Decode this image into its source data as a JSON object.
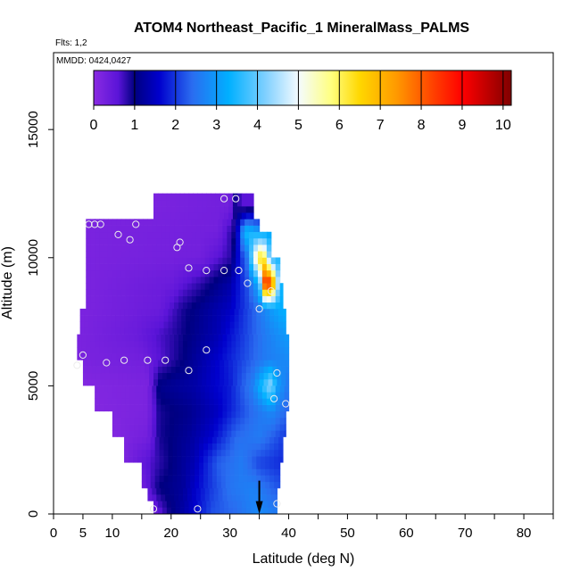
{
  "flts": "Flts: 1,2",
  "mmdd": "MMDD: 0424,0427",
  "chart_data": {
    "type": "heatmap",
    "title": "ATOM4 Northeast_Pacific_1 MineralMass_PALMS",
    "xlabel": "Latitude (deg N)",
    "ylabel": "Altitude (m)",
    "xlim": [
      0,
      85
    ],
    "ylim": [
      0,
      18000
    ],
    "x_ticks": [
      0,
      5,
      10,
      20,
      30,
      40,
      50,
      60,
      70,
      80
    ],
    "y_ticks": [
      0,
      5000,
      10000,
      15000
    ],
    "colorbar": {
      "range": [
        0,
        10.2
      ],
      "ticks": [
        0,
        1,
        2,
        3,
        4,
        5,
        6,
        7,
        8,
        9,
        10
      ],
      "stops": [
        {
          "v": 0,
          "color": "#8a2be2"
        },
        {
          "v": 0.6,
          "color": "#5a14d8"
        },
        {
          "v": 1.0,
          "color": "#000080"
        },
        {
          "v": 1.6,
          "color": "#0000cd"
        },
        {
          "v": 2.4,
          "color": "#2a6cf0"
        },
        {
          "v": 3.3,
          "color": "#00b0ff"
        },
        {
          "v": 4.2,
          "color": "#80d0ff"
        },
        {
          "v": 5.0,
          "color": "#f4fbff"
        },
        {
          "v": 5.8,
          "color": "#ffff80"
        },
        {
          "v": 6.5,
          "color": "#ffd700"
        },
        {
          "v": 7.4,
          "color": "#ff9900"
        },
        {
          "v": 8.3,
          "color": "#ff4000"
        },
        {
          "v": 9.0,
          "color": "#ff0000"
        },
        {
          "v": 9.6,
          "color": "#c00000"
        },
        {
          "v": 10.2,
          "color": "#800000"
        }
      ]
    },
    "envelope": [
      {
        "alt": 0,
        "lat_min": 17,
        "lat_max": 38
      },
      {
        "alt": 500,
        "lat_min": 16,
        "lat_max": 38
      },
      {
        "alt": 1000,
        "lat_min": 15,
        "lat_max": 38.5
      },
      {
        "alt": 2000,
        "lat_min": 12,
        "lat_max": 39
      },
      {
        "alt": 3000,
        "lat_min": 10,
        "lat_max": 39.5
      },
      {
        "alt": 4000,
        "lat_min": 7,
        "lat_max": 40
      },
      {
        "alt": 5000,
        "lat_min": 5,
        "lat_max": 40
      },
      {
        "alt": 6000,
        "lat_min": 4,
        "lat_max": 40
      },
      {
        "alt": 7000,
        "lat_min": 4.5,
        "lat_max": 39.5
      },
      {
        "alt": 8000,
        "lat_min": 5.5,
        "lat_max": 39
      },
      {
        "alt": 9000,
        "lat_min": 5.5,
        "lat_max": 38.5
      },
      {
        "alt": 10000,
        "lat_min": 5.5,
        "lat_max": 37
      },
      {
        "alt": 11000,
        "lat_min": 5.5,
        "lat_max": 35
      },
      {
        "alt": 11500,
        "lat_min": 17,
        "lat_max": 34
      },
      {
        "alt": 12500,
        "lat_min": 28,
        "lat_max": 32
      }
    ],
    "profile": [
      {
        "alt": 0,
        "values": [
          [
            17,
            0.3
          ],
          [
            20,
            1.0
          ],
          [
            24,
            1.6
          ],
          [
            27,
            2.2
          ],
          [
            31,
            2.4
          ],
          [
            35,
            2.8
          ],
          [
            38,
            2.6
          ]
        ]
      },
      {
        "alt": 1000,
        "values": [
          [
            15,
            0.3
          ],
          [
            18,
            1.0
          ],
          [
            22,
            1.2
          ],
          [
            26,
            1.9
          ],
          [
            30,
            2.5
          ],
          [
            34,
            2.7
          ],
          [
            38.5,
            2.2
          ]
        ]
      },
      {
        "alt": 2000,
        "values": [
          [
            12,
            0.2
          ],
          [
            16,
            0.6
          ],
          [
            20,
            1.0
          ],
          [
            24,
            1.4
          ],
          [
            28,
            2.3
          ],
          [
            32,
            2.6
          ],
          [
            35,
            2.1
          ],
          [
            39,
            1.9
          ]
        ]
      },
      {
        "alt": 3000,
        "values": [
          [
            10,
            0.1
          ],
          [
            16,
            0.3
          ],
          [
            18,
            0.9
          ],
          [
            23,
            1.2
          ],
          [
            27,
            1.6
          ],
          [
            31,
            2.4
          ],
          [
            35,
            2.6
          ],
          [
            39.5,
            2.0
          ]
        ]
      },
      {
        "alt": 4000,
        "values": [
          [
            7,
            0.1
          ],
          [
            16,
            0.2
          ],
          [
            18,
            0.9
          ],
          [
            23,
            1.1
          ],
          [
            28,
            1.5
          ],
          [
            33,
            2.3
          ],
          [
            37,
            2.8
          ],
          [
            40,
            2.3
          ]
        ]
      },
      {
        "alt": 5000,
        "values": [
          [
            5,
            0.1
          ],
          [
            16,
            0.2
          ],
          [
            18,
            1.1
          ],
          [
            24,
            1.3
          ],
          [
            30,
            1.8
          ],
          [
            34,
            2.7
          ],
          [
            37,
            4.4
          ],
          [
            38,
            3.1
          ],
          [
            40,
            2.5
          ]
        ]
      },
      {
        "alt": 6000,
        "values": [
          [
            4,
            0.2
          ],
          [
            15,
            0.3
          ],
          [
            21,
            0.9
          ],
          [
            24,
            1.2
          ],
          [
            28,
            1.6
          ],
          [
            32,
            2.1
          ],
          [
            36,
            2.6
          ],
          [
            40,
            2.8
          ]
        ]
      },
      {
        "alt": 7000,
        "values": [
          [
            4.5,
            0.2
          ],
          [
            14,
            0.4
          ],
          [
            20,
            0.8
          ],
          [
            24,
            1.1
          ],
          [
            28,
            1.4
          ],
          [
            32,
            2.0
          ],
          [
            36,
            2.6
          ],
          [
            39.5,
            3.0
          ]
        ]
      },
      {
        "alt": 8000,
        "values": [
          [
            5.5,
            0.2
          ],
          [
            18,
            0.4
          ],
          [
            22,
            0.9
          ],
          [
            26,
            1.2
          ],
          [
            30,
            1.5
          ],
          [
            34,
            2.3
          ],
          [
            37,
            3.0
          ],
          [
            39,
            3.3
          ]
        ]
      },
      {
        "alt": 9000,
        "values": [
          [
            5.5,
            0.2
          ],
          [
            20,
            0.4
          ],
          [
            25,
            0.8
          ],
          [
            30,
            1.3
          ],
          [
            33,
            2.2
          ],
          [
            35,
            3.4
          ],
          [
            36,
            9.1
          ],
          [
            37,
            8.4
          ],
          [
            38.5,
            3.4
          ]
        ]
      },
      {
        "alt": 10000,
        "values": [
          [
            5.5,
            0.2
          ],
          [
            25,
            0.3
          ],
          [
            30,
            0.8
          ],
          [
            33,
            2.6
          ],
          [
            34.5,
            5.6
          ],
          [
            35.5,
            6.9
          ],
          [
            37,
            3.4
          ]
        ]
      },
      {
        "alt": 11000,
        "values": [
          [
            5.5,
            0.2
          ],
          [
            28,
            0.3
          ],
          [
            31,
            1.0
          ],
          [
            32,
            2.8
          ],
          [
            33,
            3.6
          ],
          [
            35,
            3.1
          ]
        ]
      },
      {
        "alt": 12000,
        "values": [
          [
            17,
            0.2
          ],
          [
            30,
            0.3
          ],
          [
            31,
            1.0
          ],
          [
            32,
            0.6
          ]
        ]
      }
    ],
    "markers": [
      {
        "lat": 4,
        "alt": 5800
      },
      {
        "lat": 5,
        "alt": 6200
      },
      {
        "lat": 9,
        "alt": 5900
      },
      {
        "lat": 12,
        "alt": 6000
      },
      {
        "lat": 16,
        "alt": 6000
      },
      {
        "lat": 19,
        "alt": 6000
      },
      {
        "lat": 23,
        "alt": 5600
      },
      {
        "lat": 26,
        "alt": 6400
      },
      {
        "lat": 6,
        "alt": 11300
      },
      {
        "lat": 7,
        "alt": 11300
      },
      {
        "lat": 8,
        "alt": 11300
      },
      {
        "lat": 11,
        "alt": 10900
      },
      {
        "lat": 13,
        "alt": 10700
      },
      {
        "lat": 14,
        "alt": 11300
      },
      {
        "lat": 21,
        "alt": 10400
      },
      {
        "lat": 21.5,
        "alt": 10600
      },
      {
        "lat": 23,
        "alt": 9600
      },
      {
        "lat": 26,
        "alt": 9500
      },
      {
        "lat": 29,
        "alt": 9500
      },
      {
        "lat": 31.5,
        "alt": 9500
      },
      {
        "lat": 29,
        "alt": 12300
      },
      {
        "lat": 31,
        "alt": 12300
      },
      {
        "lat": 33,
        "alt": 9000
      },
      {
        "lat": 35,
        "alt": 8000
      },
      {
        "lat": 37,
        "alt": 8700
      },
      {
        "lat": 38,
        "alt": 5500
      },
      {
        "lat": 37.5,
        "alt": 4500
      },
      {
        "lat": 39.5,
        "alt": 4300
      },
      {
        "lat": 17,
        "alt": 200
      },
      {
        "lat": 24.5,
        "alt": 200
      },
      {
        "lat": 38,
        "alt": 400
      }
    ],
    "arrow_lat": 35
  }
}
